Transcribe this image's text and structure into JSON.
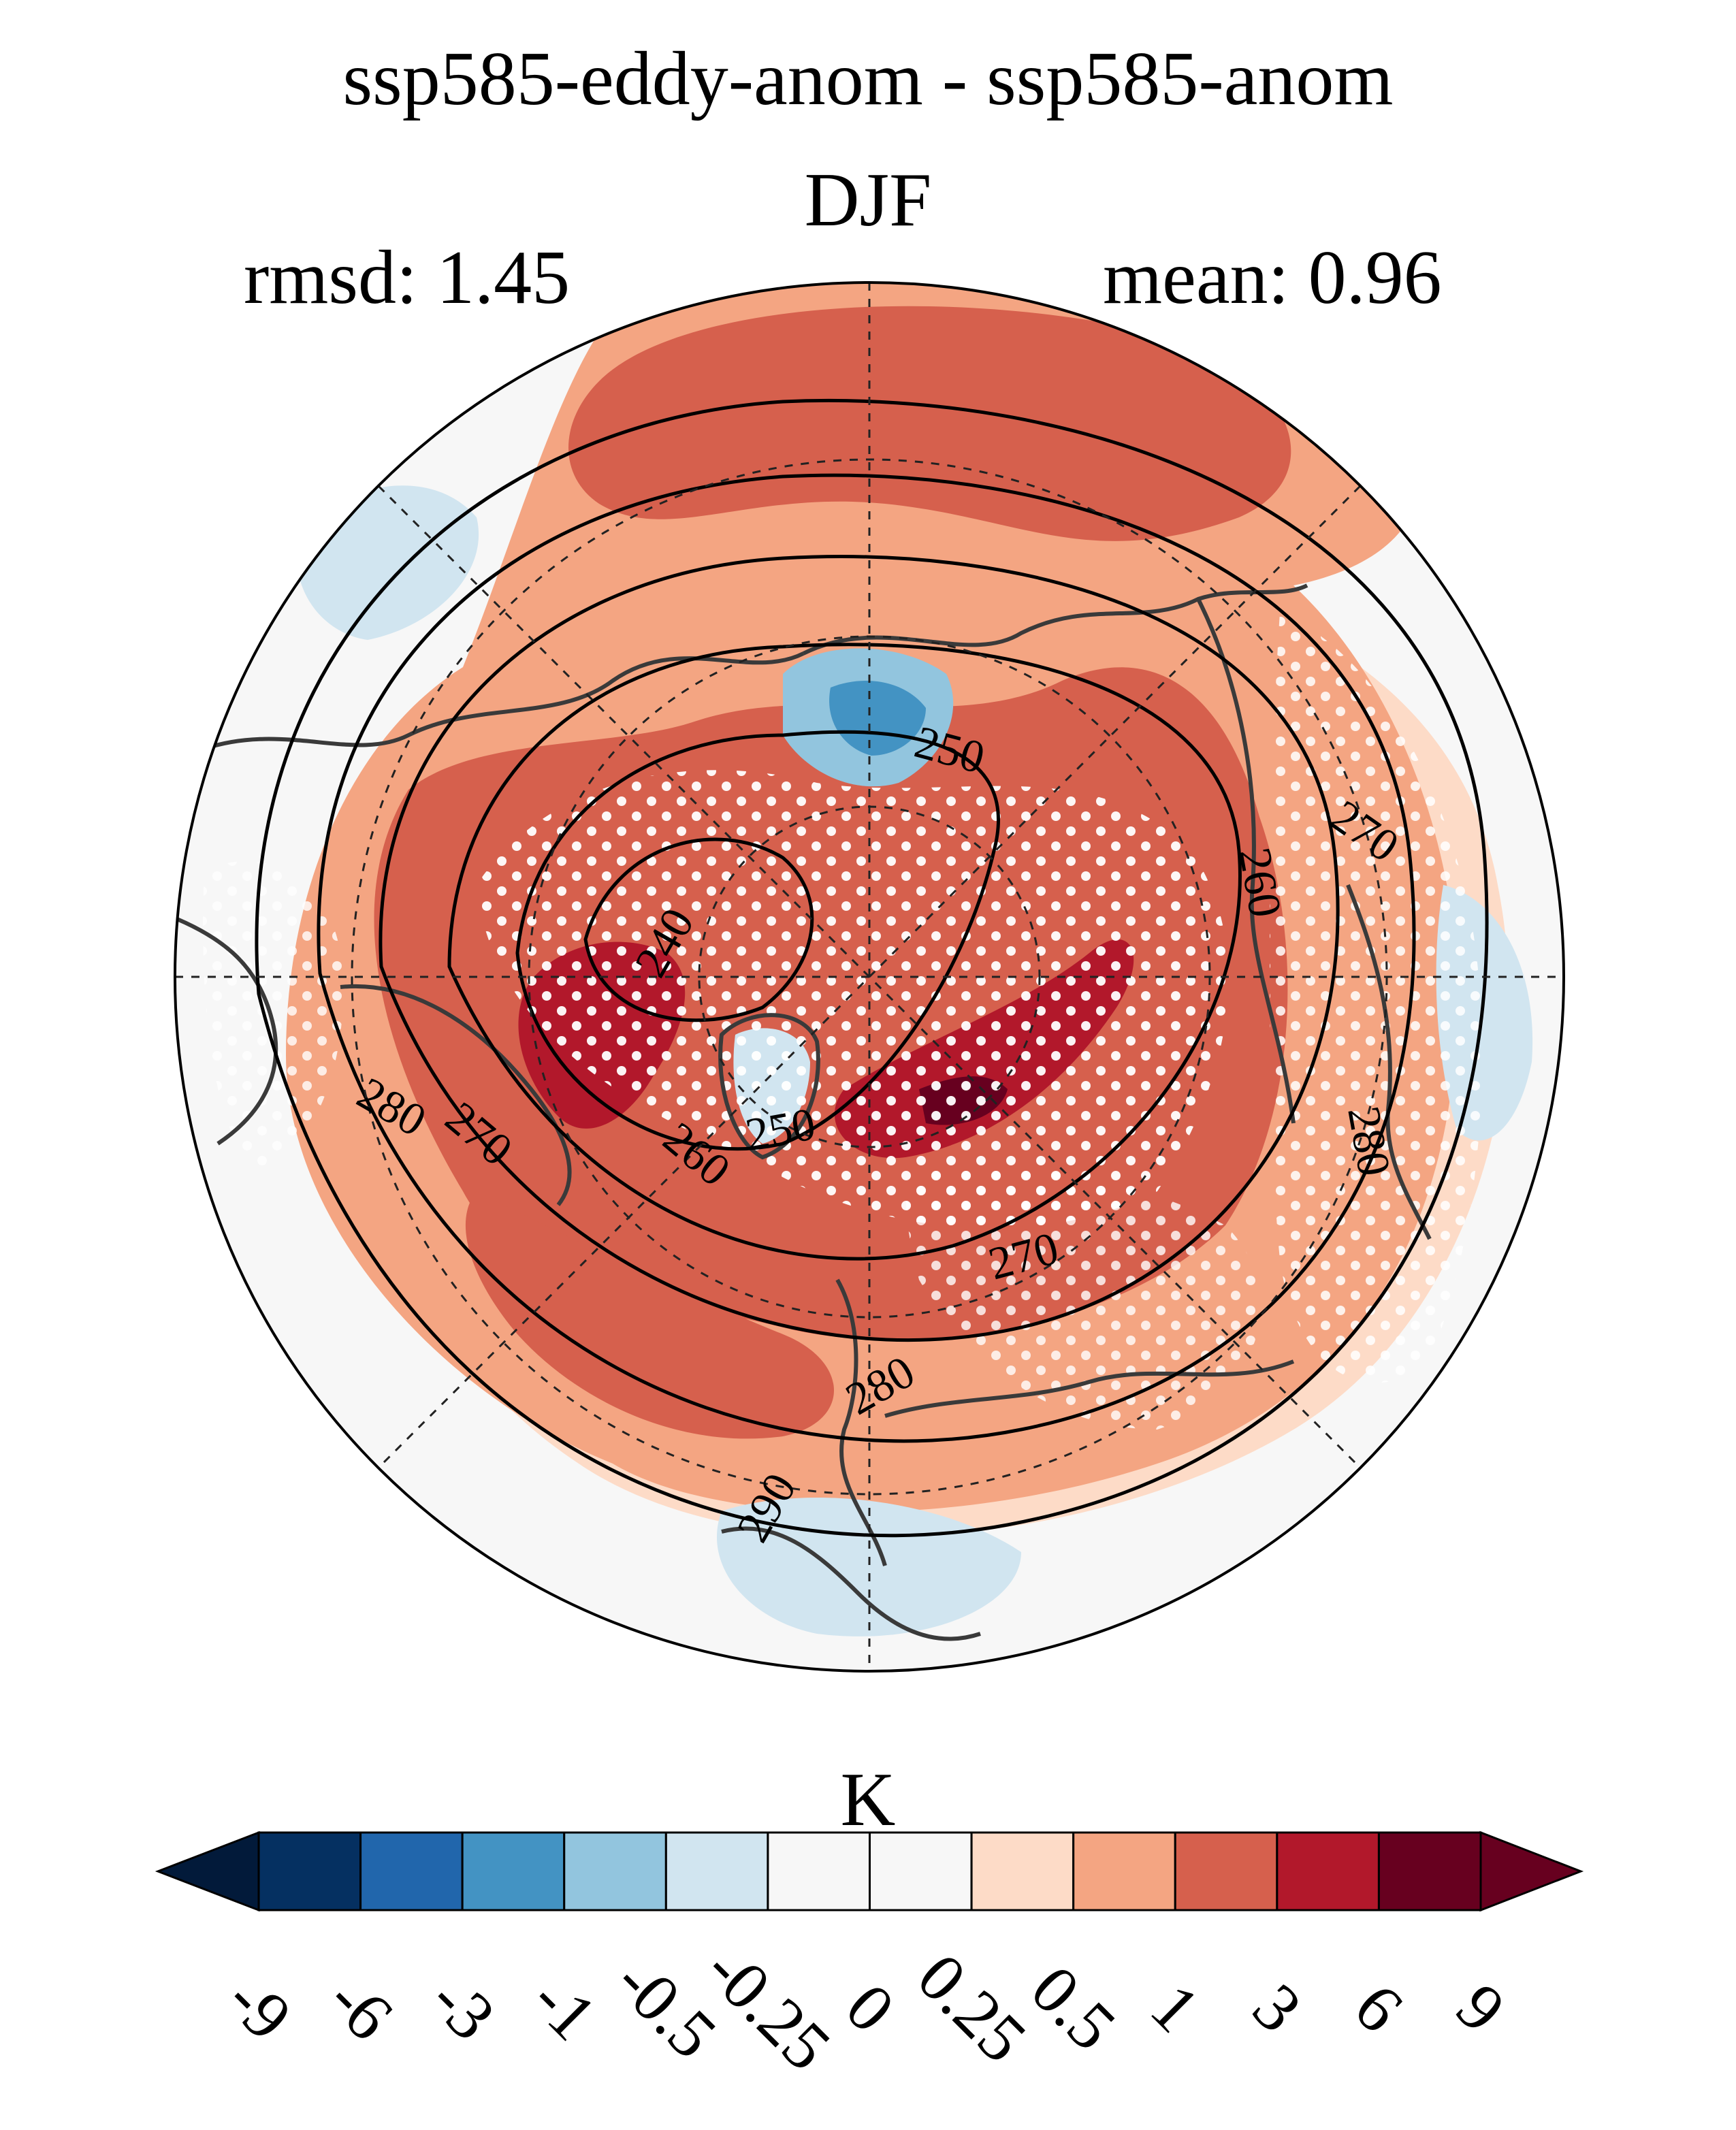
{
  "title": {
    "line1": "ssp585-eddy-anom - ssp585-anom",
    "line2": "DJF"
  },
  "stats": {
    "rmsd": "rmsd: 1.45",
    "mean": "mean: 0.96"
  },
  "map": {
    "projection": "north-polar-stereographic",
    "contour_labels": [
      "250",
      "260",
      "270",
      "240",
      "280",
      "270",
      "260",
      "250",
      "270",
      "280",
      "290",
      "280",
      "260",
      "270",
      "280"
    ],
    "stippling": "white dots mark significance",
    "colors": {
      "ocean_background": "#f7f7f7",
      "coast": "#3a3a3a",
      "contour": "#000000"
    }
  },
  "colorbar": {
    "unit": "K",
    "ticks": [
      "-9",
      "-6",
      "-3",
      "-1",
      "-0.5",
      "-0.25",
      "0",
      "0.25",
      "0.5",
      "1",
      "3",
      "6",
      "9"
    ],
    "colors": [
      "#053061",
      "#2166ac",
      "#4393c3",
      "#92c5de",
      "#d1e5f0",
      "#f7f7f7",
      "#f7f7f7",
      "#fddbc7",
      "#f4a582",
      "#d6604d",
      "#b2182b",
      "#67001f"
    ],
    "extend_low_color": "#021a3a",
    "extend_high_color": "#67001f"
  }
}
